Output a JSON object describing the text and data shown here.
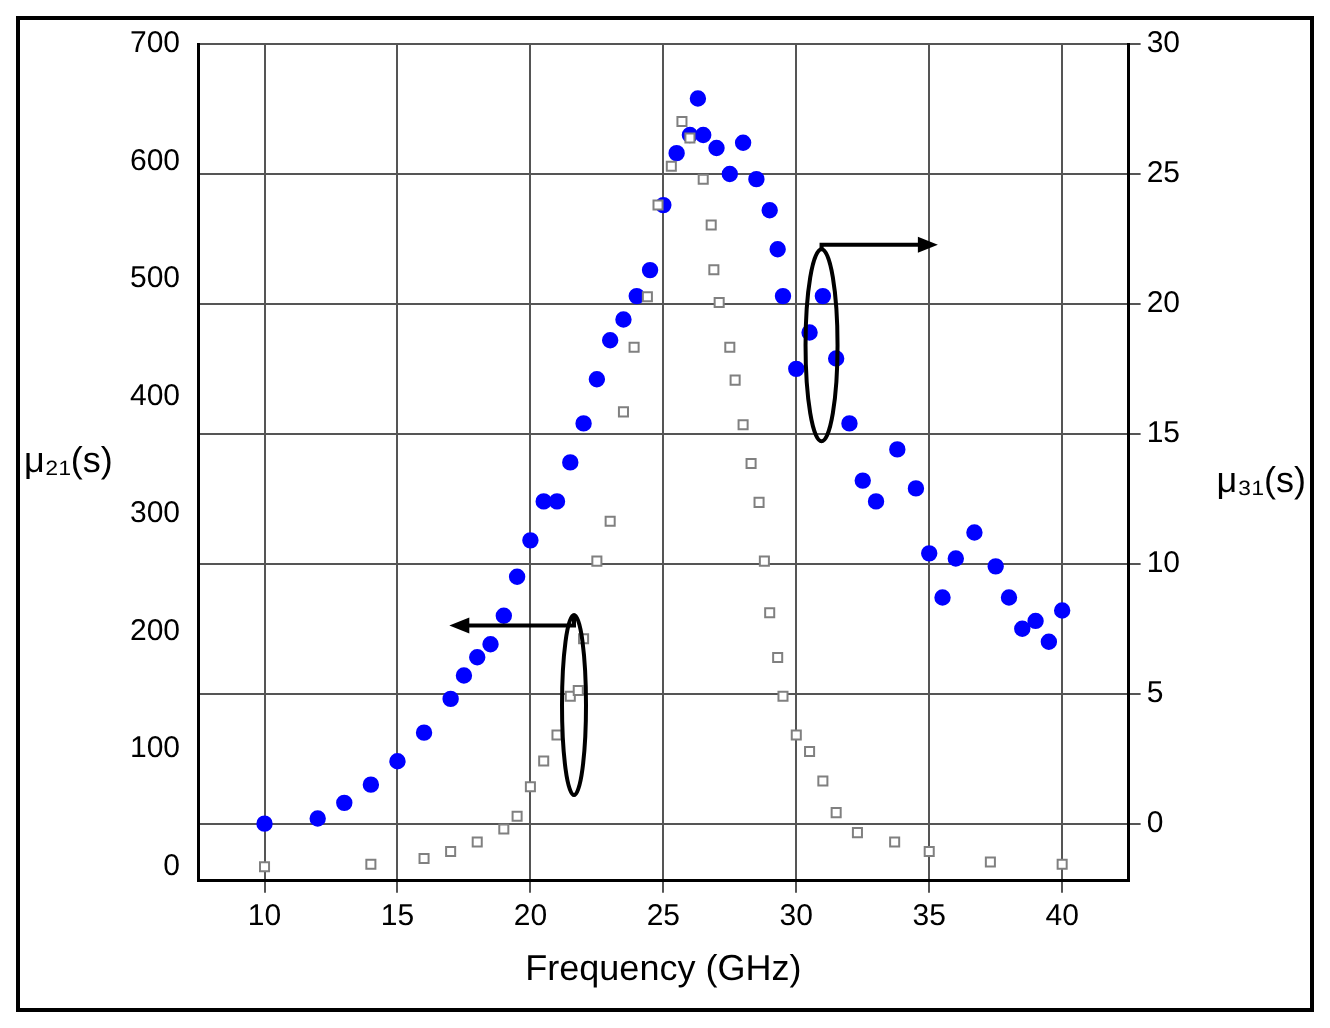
{
  "chart_data": {
    "type": "scatter",
    "xlabel": "Frequency (GHz)",
    "ylabel": "μ₂₁(s)",
    "y2label": "μ₃₁(s)",
    "xlim": [
      7.5,
      42.5
    ],
    "xticks": [
      10,
      15,
      20,
      25,
      30,
      35,
      40
    ],
    "ylim": [
      -12,
      700
    ],
    "yticks": [
      0,
      100,
      200,
      300,
      400,
      500,
      600,
      700
    ],
    "y2lim": [
      -2.2,
      30
    ],
    "y2ticks": [
      0,
      5,
      10,
      15,
      20,
      25,
      30
    ],
    "grid": true,
    "series": [
      {
        "color": "#808080",
        "marker": "square",
        "axis": "y",
        "x": [
          10,
          14,
          16,
          17,
          18,
          19,
          19.5,
          20,
          20.5,
          21,
          21.5,
          21.8,
          22,
          22.5,
          23,
          23.5,
          23.9,
          24.4,
          24.8,
          25.3,
          25.7,
          26,
          26.5,
          26.8,
          26.9,
          27.1,
          27.5,
          27.7,
          28,
          28.3,
          28.6,
          28.8,
          29,
          29.3,
          29.5,
          30,
          30.5,
          31,
          31.5,
          32.3,
          33.7,
          35,
          37.3,
          40
        ],
        "values": [
          0,
          2,
          7,
          13,
          21,
          32,
          43,
          68,
          90,
          112,
          145,
          150,
          194,
          260,
          294,
          387,
          442,
          485,
          563,
          596,
          634,
          620,
          585,
          546,
          508,
          480,
          442,
          414,
          376,
          343,
          310,
          260,
          216,
          178,
          145,
          112,
          98,
          73,
          46,
          29,
          21,
          13,
          4,
          2
        ]
      },
      {
        "color": "#0000ff",
        "marker": "circle",
        "axis": "y2",
        "x": [
          10,
          12,
          13,
          14,
          15,
          16,
          17,
          17.5,
          18,
          18.5,
          19,
          19.5,
          20,
          20.5,
          21,
          21.5,
          22,
          22.5,
          23,
          23.5,
          24,
          24.5,
          25,
          25.5,
          26,
          26.3,
          26.5,
          27,
          27.5,
          28,
          28.5,
          29,
          29.3,
          29.5,
          30,
          30.5,
          31,
          31.5,
          32,
          32.5,
          33,
          33.8,
          34.5,
          35,
          35.5,
          36,
          36.7,
          37.5,
          38,
          38.5,
          39,
          39.5,
          40
        ],
        "values": [
          0,
          0.2,
          0.8,
          1.5,
          2.4,
          3.5,
          4.8,
          5.7,
          6.4,
          6.9,
          8,
          9.5,
          10.9,
          12.4,
          12.4,
          13.9,
          15.4,
          17.1,
          18.6,
          19.4,
          20.3,
          21.3,
          23.8,
          25.8,
          26.5,
          27.9,
          26.5,
          26,
          25,
          26.2,
          24.8,
          23.6,
          22.1,
          20.3,
          17.5,
          18.9,
          20.3,
          17.9,
          15.4,
          13.2,
          12.4,
          14.4,
          12.9,
          10.4,
          8.7,
          10.2,
          11.2,
          9.9,
          8.7,
          7.5,
          7.8,
          7,
          8.2
        ]
      }
    ]
  }
}
